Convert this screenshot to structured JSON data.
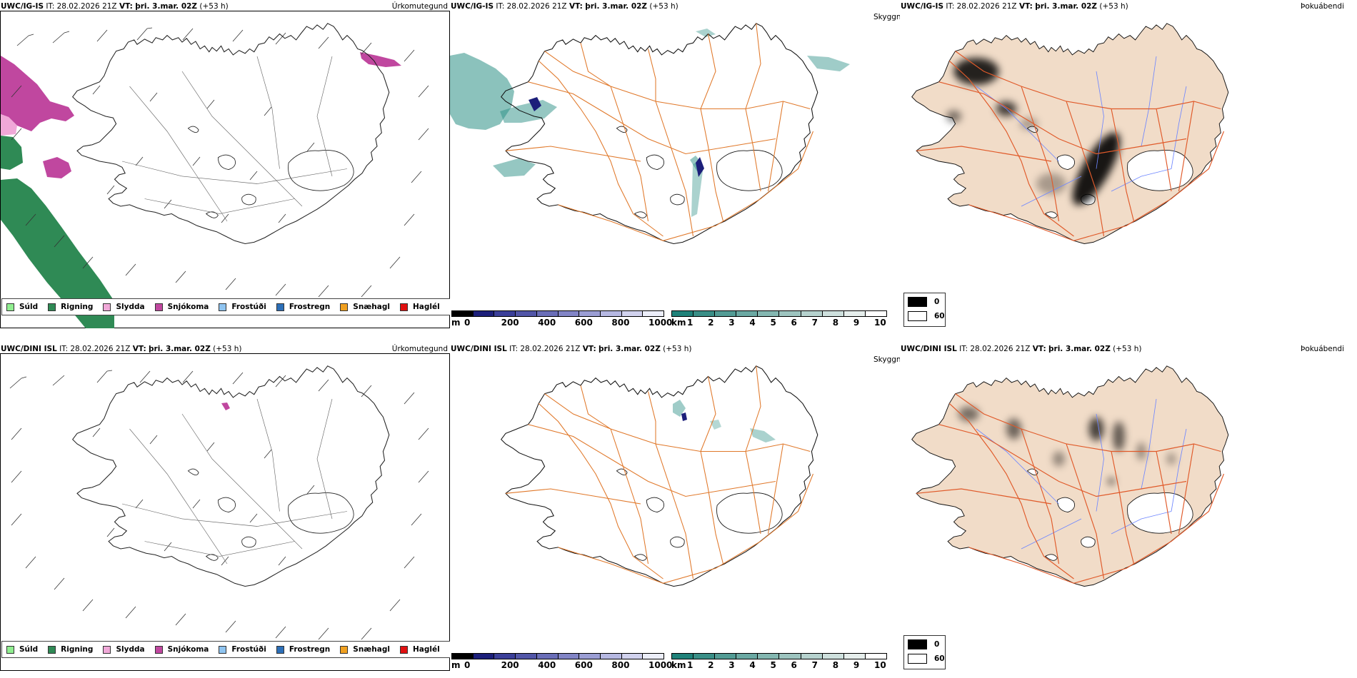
{
  "colors": {
    "snow": "#c0479f",
    "rain": "#2f8a55",
    "sleet": "#f0a8d8",
    "coast": "#111111",
    "roads": "#e0782a",
    "rivers": "#6e86ff",
    "land_tint": "#f1dcc8",
    "fog": "#2b8f85",
    "ceiling": "#1c1f7a"
  },
  "rows": [
    {
      "model_label": "UWC/IG-IS",
      "it_label": "IT:",
      "it_value": "28.02.2026 21Z",
      "vt_label": "VT:",
      "vt_value": "þri. 3.mar. 02Z",
      "lead": "(+53 h)",
      "precip_title": "Úrkomutegund",
      "cloud_title": "Skyggni",
      "mask_title": "Þokuábendi"
    },
    {
      "model_label": "UWC/DINI ISL",
      "it_label": "IT:",
      "it_value": "28.02.2026 21Z",
      "vt_label": "VT:",
      "vt_value": "þri. 3.mar. 02Z",
      "lead": "(+53 h)",
      "precip_title": "Úrkomutegund",
      "cloud_title": "Skyggni",
      "mask_title": "Þokuábendi"
    }
  ],
  "precip_legend": [
    {
      "label": "Súld",
      "color": "#90ee90"
    },
    {
      "label": "Rigning",
      "color": "#2f8a55"
    },
    {
      "label": "Slydda",
      "color": "#f0a8d8"
    },
    {
      "label": "Snjókoma",
      "color": "#c0479f"
    },
    {
      "label": "Frostúði",
      "color": "#8fc4f0"
    },
    {
      "label": "Frostregn",
      "color": "#2c6fb8"
    },
    {
      "label": "Snæhagl",
      "color": "#f0a020"
    },
    {
      "label": "Haglél",
      "color": "#e01010"
    }
  ],
  "ceiling_scale": {
    "unit": "m",
    "ticks": [
      "0",
      "200",
      "400",
      "600",
      "800",
      "1000"
    ],
    "colors": [
      "#000000",
      "#1c1f7a",
      "#3b3f99",
      "#5256a8",
      "#6a6eb8",
      "#8285c6",
      "#9b9ed4",
      "#b6b8e2",
      "#d1d2ee",
      "#eceef9"
    ]
  },
  "vis_scale": {
    "unit": "km",
    "ticks": [
      "1",
      "2",
      "3",
      "4",
      "5",
      "6",
      "7",
      "8",
      "9",
      "10"
    ],
    "colors": [
      "#20827a",
      "#3a8f87",
      "#539c95",
      "#6ba9a3",
      "#84b7b1",
      "#9dc4bf",
      "#b6d2ce",
      "#cee0dd",
      "#e6eeec",
      "#ffffff"
    ]
  },
  "mask_legend": [
    {
      "value": "0",
      "color": "#000000"
    },
    {
      "value": "60",
      "color": "#ffffff"
    }
  ]
}
